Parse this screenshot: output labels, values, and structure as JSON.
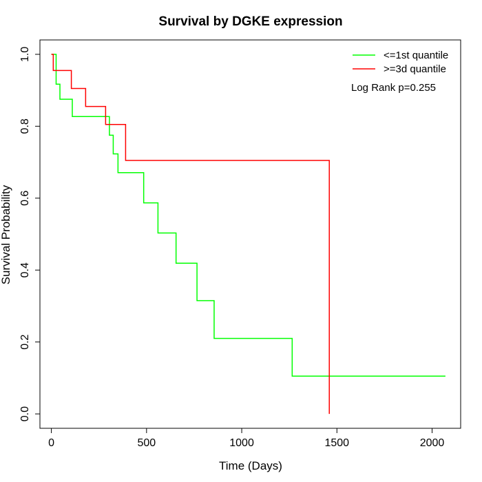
{
  "chart_data": {
    "type": "line",
    "title": "Survival by DGKE expression",
    "xlabel": "Time (Days)",
    "ylabel": "Survival Probability",
    "xlim": [
      -60,
      2150
    ],
    "ylim": [
      -0.04,
      1.04
    ],
    "x_ticks": [
      0,
      500,
      1000,
      1500,
      2000
    ],
    "y_ticks": [
      0.0,
      0.2,
      0.4,
      0.6,
      0.8,
      1.0
    ],
    "x_tick_labels": [
      "0",
      "500",
      "1000",
      "1500",
      "2000"
    ],
    "y_tick_labels": [
      "0.0",
      "0.2",
      "0.4",
      "0.6",
      "0.8",
      "1.0"
    ],
    "grid": false,
    "legend_position": "top-right",
    "annotation": "Log Rank p=0.255",
    "series": [
      {
        "name": "<=1st quantile",
        "color": "#00ff00",
        "step": true,
        "x": [
          0,
          25,
          45,
          110,
          305,
          325,
          350,
          485,
          560,
          655,
          765,
          855,
          1265,
          2070
        ],
        "y": [
          1.0,
          0.917,
          0.875,
          0.827,
          0.775,
          0.723,
          0.671,
          0.587,
          0.503,
          0.419,
          0.315,
          0.21,
          0.105,
          0.105
        ]
      },
      {
        "name": ">=3d quantile",
        "color": "#ff0000",
        "step": true,
        "x": [
          0,
          10,
          105,
          180,
          285,
          390,
          1460
        ],
        "y": [
          1.0,
          0.955,
          0.905,
          0.855,
          0.805,
          0.705,
          0.0
        ]
      }
    ]
  }
}
